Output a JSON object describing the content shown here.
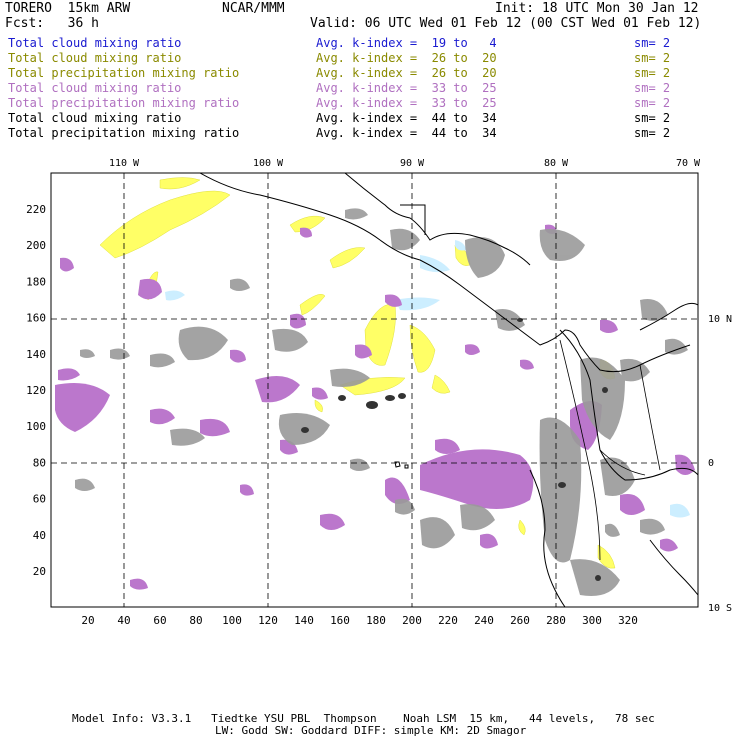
{
  "header": {
    "model": "TORERO  15km ARW",
    "center": "NCAR/MMM",
    "init": "Init: 18 UTC Mon 30 Jan 12",
    "fcst": "Fcst:   36 h",
    "valid": "Valid: 06 UTC Wed 01 Feb 12 (00 CST Wed 01 Feb 12)"
  },
  "legend": [
    {
      "field": "Total cloud mixing ratio",
      "index": "Avg. k-index =  19 to   4",
      "sm": "sm= 2",
      "color": "#1a1ad0"
    },
    {
      "field": "Total cloud mixing ratio",
      "index": "Avg. k-index =  26 to  20",
      "sm": "sm= 2",
      "color": "#8a8a00"
    },
    {
      "field": "Total precipitation mixing ratio",
      "index": "Avg. k-index =  26 to  20",
      "sm": "sm= 2",
      "color": "#8a8a00"
    },
    {
      "field": "Total cloud mixing ratio",
      "index": "Avg. k-index =  33 to  25",
      "sm": "sm= 2",
      "color": "#b070c0"
    },
    {
      "field": "Total precipitation mixing ratio",
      "index": "Avg. k-index =  33 to  25",
      "sm": "sm= 2",
      "color": "#b070c0"
    },
    {
      "field": "Total cloud mixing ratio",
      "index": "Avg. k-index =  44 to  34",
      "sm": "sm= 2",
      "color": "#000000"
    },
    {
      "field": "Total precipitation mixing ratio",
      "index": "Avg. k-index =  44 to  34",
      "sm": "sm= 2",
      "color": "#000000"
    }
  ],
  "map": {
    "top_labels": [
      "110 W",
      "100 W",
      "90 W",
      "80 W",
      "70 W"
    ],
    "right_labels": [
      "10 N",
      "0",
      "10 S"
    ],
    "x_ticks": [
      "20",
      "40",
      "60",
      "80",
      "100",
      "120",
      "140",
      "160",
      "180",
      "200",
      "220",
      "240",
      "260",
      "280",
      "300",
      "320"
    ],
    "y_ticks": [
      "20",
      "40",
      "60",
      "80",
      "100",
      "120",
      "140",
      "160",
      "180",
      "200",
      "220"
    ],
    "colors": {
      "yellow": "#ffff66",
      "cyan": "#cceeff",
      "purple": "#bb77cc",
      "gray": "#9a9a9a",
      "dark": "#333333"
    }
  },
  "footer": {
    "line1": "Model Info: V3.3.1   Tiedtke YSU PBL  Thompson    Noah LSM  15 km,   44 levels,   78 sec",
    "line2": "LW: Godd SW: Goddard DIFF: simple KM: 2D Smagor"
  }
}
